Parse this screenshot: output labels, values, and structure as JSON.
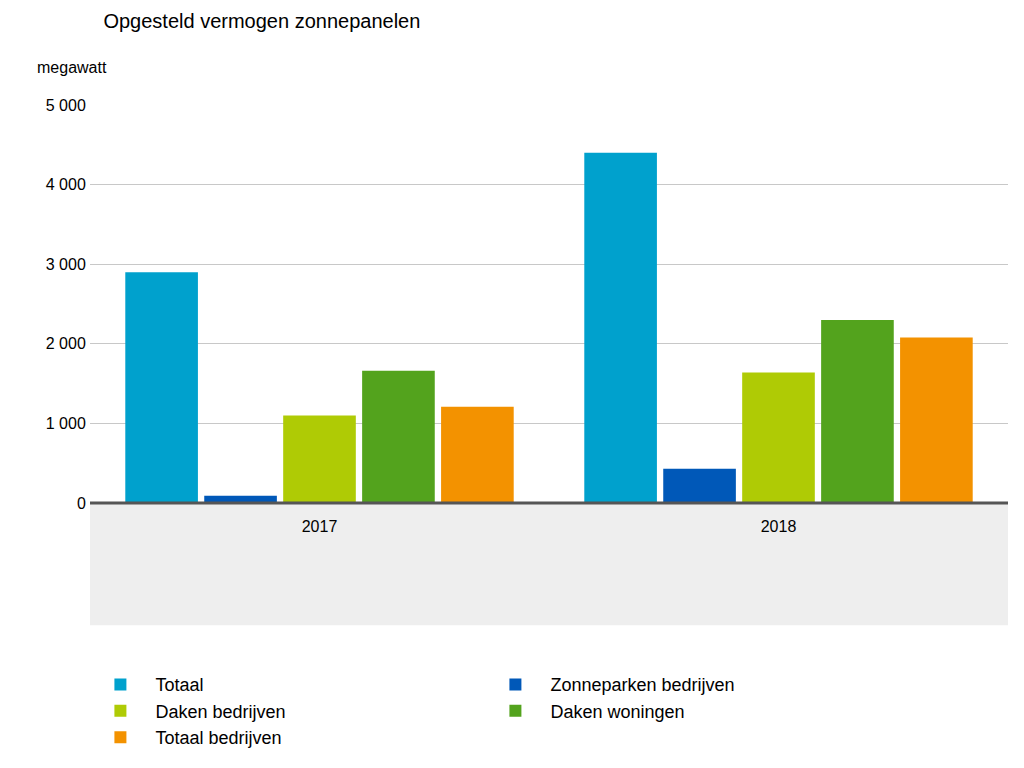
{
  "chart_data": {
    "type": "bar",
    "title": "Opgesteld vermogen zonnepanelen",
    "ylabel": "megawatt",
    "categories": [
      "2017",
      "2018"
    ],
    "series": [
      {
        "name": "Totaal",
        "color": "#00a1cd",
        "values": [
          2900,
          4400
        ]
      },
      {
        "name": "Zonneparken bedrijven",
        "color": "#0058b8",
        "values": [
          90,
          430
        ]
      },
      {
        "name": "Daken bedrijven",
        "color": "#afcb05",
        "values": [
          1100,
          1640
        ]
      },
      {
        "name": "Daken woningen",
        "color": "#53a31d",
        "values": [
          1660,
          2300
        ]
      },
      {
        "name": "Totaal bedrijven",
        "color": "#f39200",
        "values": [
          1210,
          2080
        ]
      }
    ],
    "ylim": [
      0,
      5000
    ],
    "yticks": [
      0,
      {
        "value": 1000,
        "label": "1 000"
      },
      {
        "value": 2000,
        "label": "2 000"
      },
      {
        "value": 3000,
        "label": "3 000"
      },
      {
        "value": 4000,
        "label": "4 000"
      },
      {
        "value": 5000,
        "label": "5 000"
      }
    ],
    "grid": true,
    "legend": "bottom"
  }
}
